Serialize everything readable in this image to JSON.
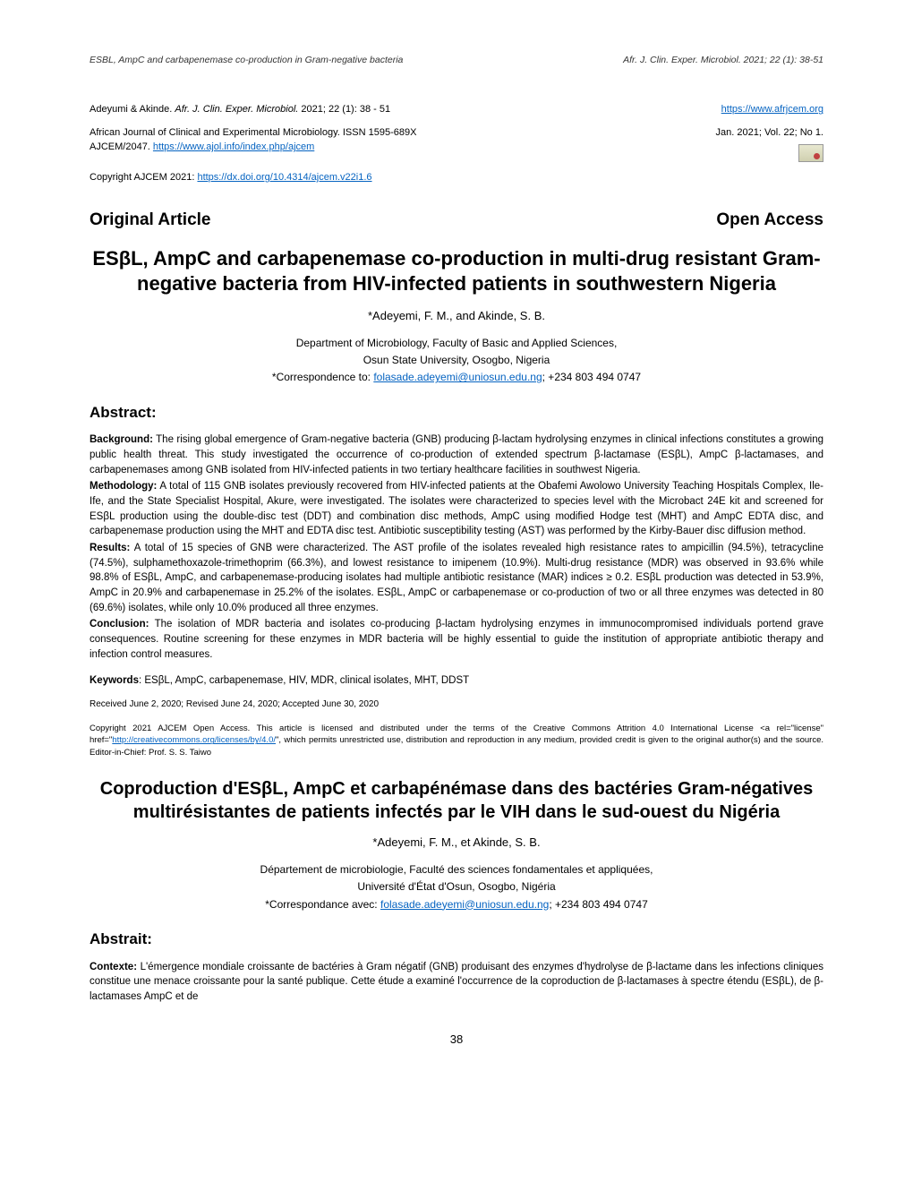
{
  "header": {
    "left": "ESBL, AmpC and carbapenemase co-production in Gram-negative bacteria",
    "right": "Afr. J. Clin. Exper. Microbiol. 2021; 22 (1): 38-51"
  },
  "meta": {
    "citation_prefix": "Adeyumi & Akinde. ",
    "citation_italic": "Afr. J. Clin. Exper. Microbiol.",
    "citation_suffix": " 2021; 22 (1): 38 - 51",
    "journal_url": "https://www.afrjcem.org",
    "journal_line1": "African Journal of Clinical and Experimental Microbiology. ISSN 1595-689X",
    "journal_line2_prefix": "AJCEM/2047. ",
    "journal_line2_url": "https://www.ajol.info/index.php/ajcem",
    "issue": "Jan. 2021; Vol. 22; No 1.",
    "copyright_prefix": "Copyright AJCEM 2021: ",
    "doi_url": "https://dx.doi.org/10.4314/ajcem.v22i1.6"
  },
  "heading": {
    "left": "Original Article",
    "right": "Open Access"
  },
  "title": "ESβL, AmpC and carbapenemase co-production in multi-drug resistant Gram-negative bacteria from HIV-infected patients in southwestern Nigeria",
  "authors": "*Adeyemi, F. M., and Akinde, S. B.",
  "affiliation1": "Department of Microbiology, Faculty of Basic and Applied Sciences,",
  "affiliation2": "Osun State University, Osogbo, Nigeria",
  "correspondence_prefix": "*Correspondence to: ",
  "correspondence_email": "folasade.adeyemi@uniosun.edu.ng",
  "correspondence_suffix": "; +234 803 494 0747",
  "abstract_heading": "Abstract:",
  "abstract": {
    "background_label": "Background:",
    "background": " The rising global emergence of Gram-negative bacteria (GNB) producing β-lactam hydrolysing enzymes in clinical infections constitutes a growing public health threat. This study investigated the occurrence of co-production of extended spectrum β-lactamase (ESβL), AmpC β-lactamases, and carbapenemases among GNB isolated from HIV-infected patients in two tertiary healthcare facilities in southwest Nigeria.",
    "methodology_label": "Methodology:",
    "methodology": " A total of 115 GNB isolates previously recovered from HIV-infected patients at the Obafemi Awolowo University Teaching Hospitals Complex, Ile-Ife, and the State Specialist Hospital, Akure, were investigated. The isolates were characterized to species level with the Microbact 24E kit and screened for ESβL production using the double-disc test (DDT) and combination disc methods, AmpC using modified Hodge test (MHT) and AmpC EDTA disc, and carbapenemase production using the MHT and EDTA disc test. Antibiotic susceptibility testing (AST) was performed by the Kirby-Bauer disc diffusion method.",
    "results_label": "Results:",
    "results": " A total of 15 species of GNB were characterized. The AST profile of the isolates revealed high resistance rates to ampicillin (94.5%), tetracycline (74.5%), sulphamethoxazole-trimethoprim (66.3%), and lowest resistance to imipenem (10.9%). Multi-drug resistance (MDR) was observed in 93.6% while 98.8% of ESβL, AmpC, and carbapenemase-producing isolates had multiple antibiotic resistance (MAR) indices ≥ 0.2. ESβL production was detected in 53.9%, AmpC in 20.9% and carbapenemase in 25.2% of the isolates. ESβL, AmpC or carbapenemase or co-production of two or all three enzymes was detected in 80 (69.6%) isolates, while only 10.0% produced all three enzymes.",
    "conclusion_label": "Conclusion:",
    "conclusion": " The isolation of MDR bacteria and isolates co-producing β-lactam hydrolysing enzymes in immunocompromised individuals portend grave consequences. Routine screening for these enzymes in MDR bacteria will be highly essential to guide the institution of appropriate antibiotic therapy and infection control measures."
  },
  "keywords_label": "Keywords",
  "keywords": ": ESβL, AmpC, carbapenemase, HIV, MDR, clinical isolates, MHT, DDST",
  "dates": "Received June 2, 2020; Revised June 24, 2020; Accepted June 30, 2020",
  "license_prefix": "Copyright 2021 AJCEM Open Access. This article is licensed and distributed under the terms of the Creative Commons Attrition 4.0 International License <a rel=\"license\" href=\"",
  "license_url": "http://creativecommons.org/licenses/by/4.0/",
  "license_suffix": "\", which permits unrestricted use, distribution and reproduction in any medium, provided credit is given to the original author(s) and the source. Editor-in-Chief: Prof. S. S. Taiwo",
  "fr_title": "Coproduction d'ESβL, AmpC et carbapénémase dans des bactéries Gram-négatives multirésistantes de patients infectés par le VIH dans le sud-ouest du Nigéria",
  "fr_authors": "*Adeyemi, F. M., et Akinde, S. B.",
  "fr_affiliation1": "Département de microbiologie, Faculté des sciences fondamentales et appliquées,",
  "fr_affiliation2": "Université d'État d'Osun, Osogbo, Nigéria",
  "fr_correspondence_prefix": "*Correspondance avec: ",
  "fr_correspondence_email": "folasade.adeyemi@uniosun.edu.ng",
  "fr_correspondence_suffix": "; +234 803 494 0747",
  "fr_abstract_heading": "Abstrait:",
  "fr_contexte_label": "Contexte:",
  "fr_contexte": " L'émergence mondiale croissante de bactéries à Gram négatif (GNB) produisant des enzymes d'hydrolyse de β-lactame dans les infections cliniques constitue une menace croissante pour la santé publique. Cette étude a examiné l'occurrence de la coproduction de β-lactamases à spectre étendu (ESβL), de β-lactamases AmpC et de",
  "page_number": "38"
}
